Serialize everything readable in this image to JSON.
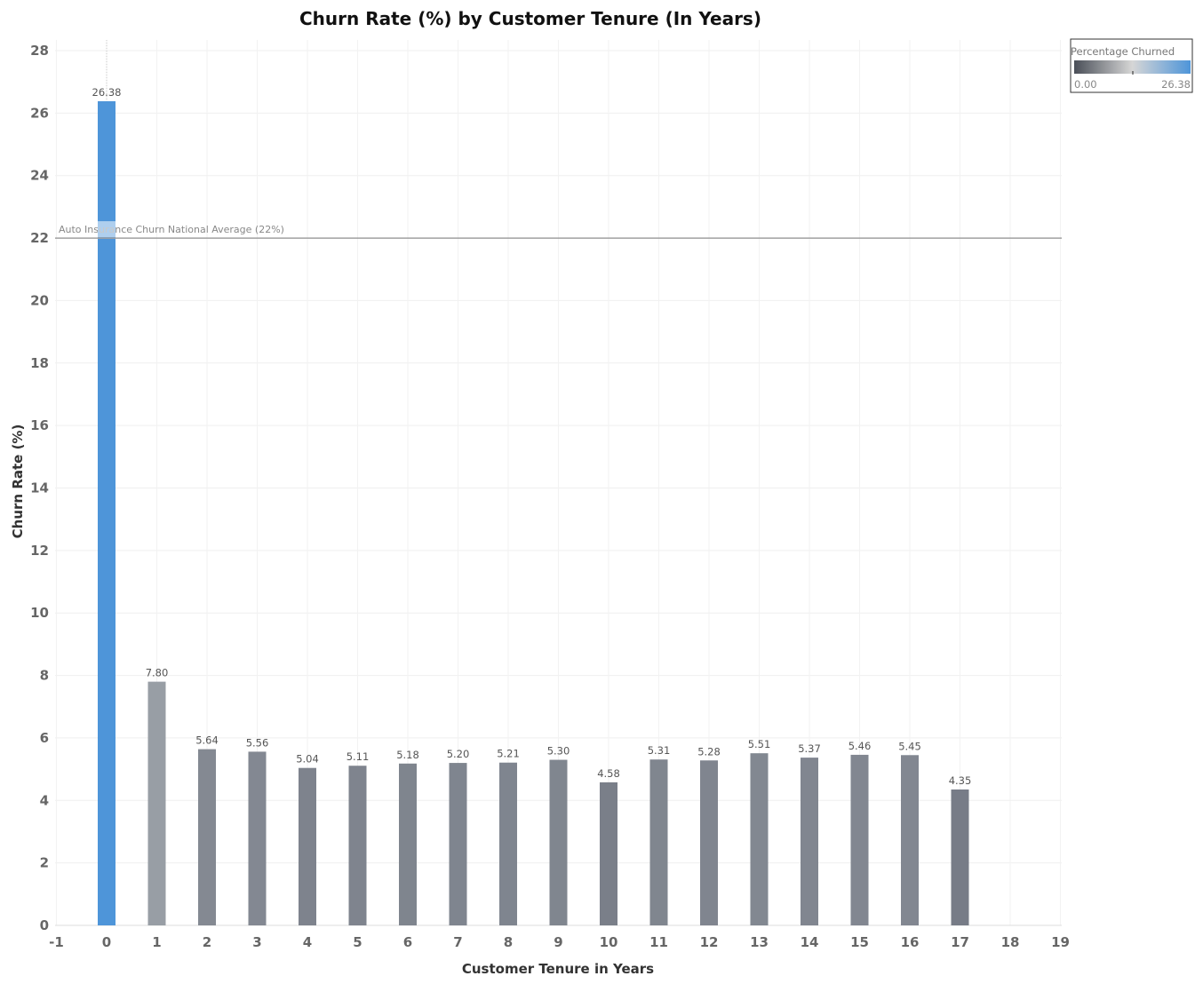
{
  "chart_data": {
    "type": "bar",
    "title": "Churn Rate (%) by Customer Tenure (In Years)",
    "xlabel": "Customer Tenure in Years",
    "ylabel": "Churn Rate (%)",
    "x_ticks": [
      "-1",
      "0",
      "1",
      "2",
      "3",
      "4",
      "5",
      "6",
      "7",
      "8",
      "9",
      "10",
      "11",
      "12",
      "13",
      "14",
      "15",
      "16",
      "17",
      "18",
      "19"
    ],
    "y_ticks": [
      "0",
      "2",
      "4",
      "6",
      "8",
      "10",
      "12",
      "14",
      "16",
      "18",
      "20",
      "22",
      "24",
      "26",
      "28"
    ],
    "xlim": [
      -1,
      19
    ],
    "ylim": [
      0,
      28
    ],
    "x": [
      0,
      1,
      2,
      3,
      4,
      5,
      6,
      7,
      8,
      9,
      10,
      11,
      12,
      13,
      14,
      15,
      16,
      17
    ],
    "values": [
      26.38,
      7.8,
      5.64,
      5.56,
      5.04,
      5.11,
      5.18,
      5.2,
      5.21,
      5.3,
      4.58,
      5.31,
      5.28,
      5.51,
      5.37,
      5.46,
      5.45,
      4.35
    ],
    "labels": [
      "26.38",
      "7.80",
      "5.64",
      "5.56",
      "5.04",
      "5.11",
      "5.18",
      "5.20",
      "5.21",
      "5.30",
      "4.58",
      "5.31",
      "5.28",
      "5.51",
      "5.37",
      "5.46",
      "5.45",
      "4.35"
    ],
    "reference_line": {
      "value": 22,
      "label": "Auto Insurance Churn National Average (22%)",
      "color": "#a0a0a0"
    },
    "legend": {
      "title": "Percentage Churned",
      "min_label": "0.00",
      "max_label": "26.38",
      "placement": "top-right",
      "colors": [
        "#4a4f58",
        "#d6d6d6",
        "#4e95d9"
      ]
    },
    "grid": true
  }
}
